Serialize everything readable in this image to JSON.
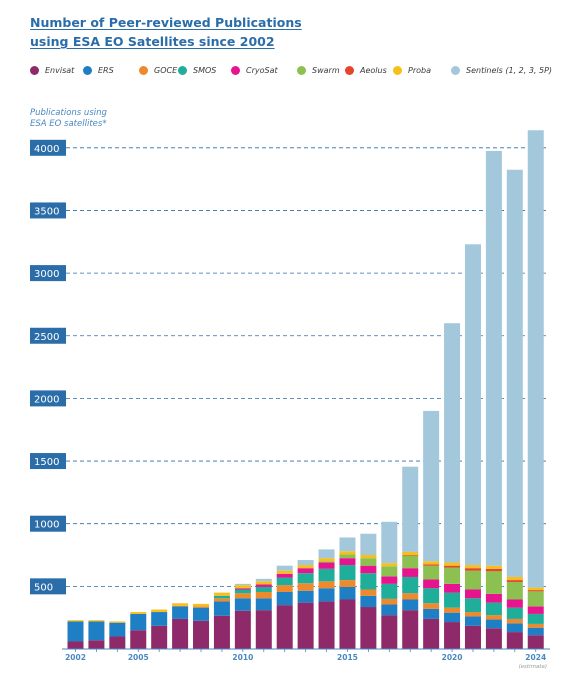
{
  "header": {
    "title_line1": "Number of Peer-reviewed Publications",
    "title_line2": "using ESA EO Satellites since 2002"
  },
  "y_caption": {
    "line1": "Publications using",
    "line2": "ESA EO satellites*"
  },
  "x_note": "(estimate)",
  "chart_data": {
    "type": "bar",
    "stacked": true,
    "x": [
      2002,
      2003,
      2004,
      2005,
      2006,
      2007,
      2008,
      2009,
      2010,
      2011,
      2012,
      2013,
      2014,
      2015,
      2016,
      2017,
      2018,
      2019,
      2020,
      2021,
      2022,
      2023,
      2024
    ],
    "x_tick_labels": [
      "2002",
      "2005",
      "2010",
      "2015",
      "2020",
      "2024"
    ],
    "x_tick_values": [
      2002,
      2005,
      2010,
      2015,
      2020,
      2024
    ],
    "y_tick_labels": [
      "500",
      "1000",
      "1500",
      "2000",
      "2500",
      "3000",
      "3500",
      "4000"
    ],
    "y_tick_values": [
      500,
      1000,
      1500,
      2000,
      2500,
      3000,
      3500,
      4000
    ],
    "ylim": [
      0,
      4150
    ],
    "grid": true,
    "grid_style": "dashed",
    "legend_placement": "top",
    "annotations": [
      "(estimate)"
    ],
    "series": [
      {
        "name": "Envisat",
        "color": "#8e2a6a",
        "values": [
          60,
          70,
          100,
          150,
          185,
          240,
          225,
          265,
          305,
          310,
          350,
          370,
          380,
          395,
          335,
          270,
          310,
          240,
          215,
          185,
          165,
          135,
          110
        ]
      },
      {
        "name": "ERS",
        "color": "#1f7fc4",
        "values": [
          160,
          150,
          110,
          130,
          110,
          100,
          105,
          115,
          100,
          95,
          105,
          95,
          105,
          100,
          90,
          85,
          85,
          80,
          75,
          75,
          70,
          70,
          60
        ]
      },
      {
        "name": "GOCE",
        "color": "#ee8a2e",
        "values": [
          0,
          0,
          0,
          0,
          0,
          5,
          10,
          25,
          40,
          50,
          55,
          60,
          55,
          55,
          50,
          45,
          50,
          45,
          40,
          35,
          35,
          35,
          30
        ]
      },
      {
        "name": "SMOS",
        "color": "#1fae9a",
        "values": [
          0,
          0,
          0,
          0,
          0,
          0,
          0,
          20,
          30,
          40,
          60,
          80,
          100,
          120,
          130,
          120,
          130,
          120,
          120,
          110,
          100,
          90,
          80
        ]
      },
      {
        "name": "CryoSat",
        "color": "#e6158f",
        "values": [
          0,
          0,
          0,
          0,
          0,
          0,
          0,
          0,
          10,
          20,
          30,
          40,
          50,
          55,
          60,
          60,
          70,
          70,
          70,
          70,
          70,
          65,
          60
        ]
      },
      {
        "name": "Swarm",
        "color": "#8cc152",
        "values": [
          0,
          0,
          0,
          0,
          0,
          0,
          0,
          0,
          0,
          0,
          0,
          0,
          10,
          30,
          60,
          80,
          100,
          110,
          130,
          150,
          180,
          140,
          120
        ]
      },
      {
        "name": "Aeolus",
        "color": "#e4452c",
        "values": [
          0,
          0,
          0,
          0,
          0,
          0,
          0,
          0,
          0,
          0,
          0,
          0,
          0,
          0,
          0,
          0,
          5,
          10,
          15,
          20,
          20,
          15,
          10
        ]
      },
      {
        "name": "Proba",
        "color": "#f7bf1c",
        "values": [
          10,
          10,
          10,
          15,
          20,
          20,
          20,
          25,
          25,
          25,
          25,
          25,
          25,
          25,
          25,
          25,
          25,
          25,
          25,
          25,
          25,
          25,
          20
        ]
      },
      {
        "name": "Sentinels (1, 2, 3, 5P)",
        "color": "#a3c8db",
        "values": [
          0,
          0,
          0,
          0,
          0,
          0,
          0,
          0,
          10,
          20,
          40,
          40,
          70,
          110,
          170,
          330,
          680,
          1200,
          1910,
          2560,
          3310,
          3250,
          3650
        ]
      }
    ]
  }
}
